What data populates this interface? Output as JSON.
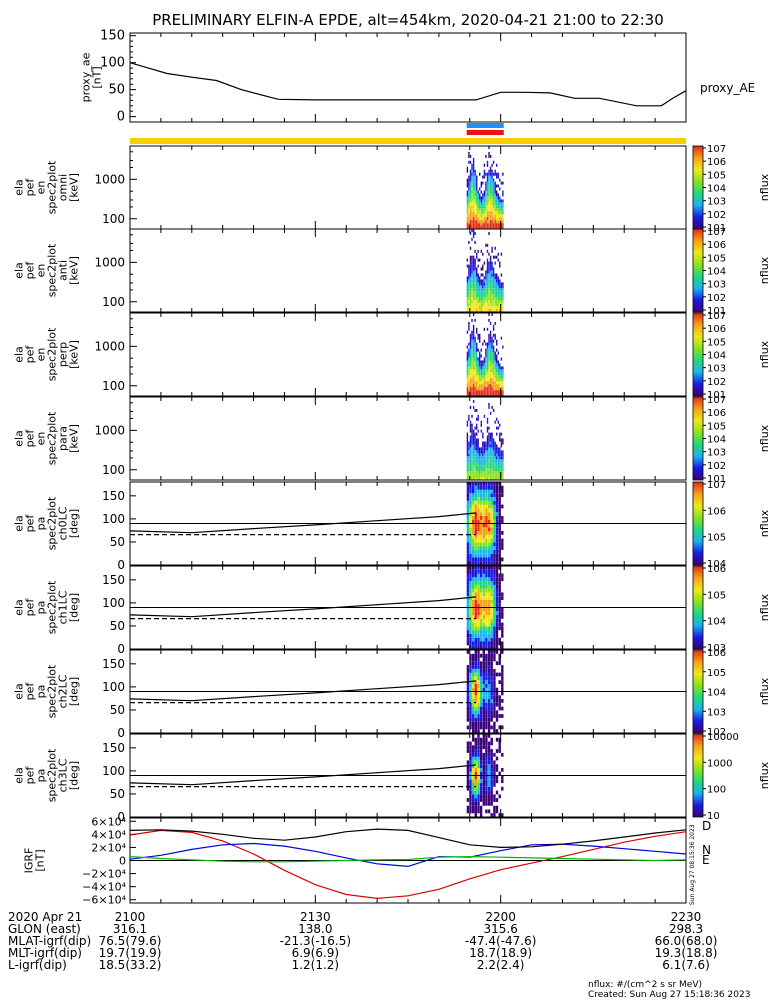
{
  "title": "PRELIMINARY ELFIN-A EPDE, alt=454km, 2020-04-21 21:00 to 22:30",
  "colors": {
    "axis": "#000000",
    "sector_bar": "#f7cf00",
    "marker_blue": "#1e90ff",
    "marker_red": "#ee1111",
    "grf_d": "#dd0000",
    "grf_n": "#0000dd",
    "grf_e": "#00bb00",
    "grf_total": "#000000",
    "colormap": [
      "#ffffff",
      "#3a007a",
      "#1a1adf",
      "#1bb2f0",
      "#1fd87a",
      "#8be21c",
      "#f0e61a",
      "#f5a01a",
      "#e12d1a"
    ]
  },
  "timeline": {
    "start_min": 0,
    "end_min": 90,
    "ticks": [
      {
        "min": 0,
        "label": "2100"
      },
      {
        "min": 30,
        "label": "2130"
      },
      {
        "min": 60,
        "label": "2200"
      },
      {
        "min": 90,
        "label": "2230"
      }
    ],
    "markers": [
      {
        "start_min": 54.5,
        "end_min": 60.5,
        "color": "marker_blue"
      },
      {
        "start_min": 54.5,
        "end_min": 60.5,
        "color": "marker_red"
      }
    ]
  },
  "panels": [
    {
      "id": "proxy_ae",
      "ylabel": [
        "proxy_ae",
        "[nT]"
      ],
      "right_label": "proxy_AE"
    },
    {
      "id": "spec_omni",
      "ylabel": [
        "ela",
        "pef",
        "en",
        "spec2plot",
        "omni",
        "[keV]"
      ],
      "cb_label": "nflux"
    },
    {
      "id": "spec_anti",
      "ylabel": [
        "ela",
        "pef",
        "en",
        "spec2plot",
        "anti",
        "[keV]"
      ],
      "cb_label": "nflux"
    },
    {
      "id": "spec_perp",
      "ylabel": [
        "ela",
        "pef",
        "en",
        "spec2plot",
        "perp",
        "[keV]"
      ],
      "cb_label": "nflux"
    },
    {
      "id": "spec_para",
      "ylabel": [
        "ela",
        "pef",
        "en",
        "spec2plot",
        "para",
        "[keV]"
      ],
      "cb_label": "nflux"
    },
    {
      "id": "pa_ch0",
      "ylabel": [
        "ela",
        "pef",
        "pa",
        "spec2plot",
        "ch0LC",
        "[deg]"
      ],
      "cb_label": "nflux"
    },
    {
      "id": "pa_ch1",
      "ylabel": [
        "ela",
        "pef",
        "pa",
        "spec2plot",
        "ch1LC",
        "[deg]"
      ],
      "cb_label": "nflux"
    },
    {
      "id": "pa_ch2",
      "ylabel": [
        "ela",
        "pef",
        "pa",
        "spec2plot",
        "ch2LC",
        "[deg]"
      ],
      "cb_label": "nflux"
    },
    {
      "id": "pa_ch3",
      "ylabel": [
        "ela",
        "pef",
        "pa",
        "spec2plot",
        "ch3LC",
        "[deg]"
      ],
      "cb_label": "nflux"
    },
    {
      "id": "igrf",
      "ylabel": [
        "IGRF",
        "[nT]"
      ],
      "right_labels": [
        "D",
        "N",
        "E"
      ]
    }
  ],
  "chart_data": [
    {
      "type": "line",
      "id": "proxy_ae",
      "ylabel": "proxy_ae [nT]",
      "ylim": [
        -10,
        155
      ],
      "yticks": [
        0,
        50,
        100,
        150
      ],
      "x_min": [
        0,
        3,
        6,
        10,
        14,
        18,
        24,
        30,
        40,
        50,
        56,
        60,
        64,
        68,
        72,
        76,
        82,
        86,
        88,
        90
      ],
      "series": [
        {
          "name": "proxy_AE",
          "values": [
            100,
            90,
            80,
            73,
            67,
            50,
            32,
            31,
            31,
            31,
            31,
            45,
            45,
            44,
            34,
            34,
            20,
            20,
            35,
            48
          ]
        }
      ]
    },
    {
      "type": "heatmap",
      "id": "spec_en",
      "panels": [
        "omni",
        "anti",
        "perp",
        "para"
      ],
      "y_scale": "log",
      "ylim_keV": [
        55,
        7000
      ],
      "yticks": [
        100,
        1000
      ],
      "data_window_min": [
        54.5,
        60.5
      ],
      "colorbar_log_range": [
        1,
        7
      ],
      "colorbar_ticks": [
        "101",
        "102",
        "103",
        "104",
        "105",
        "106",
        "107"
      ]
    },
    {
      "type": "heatmap",
      "id": "spec_pa",
      "panels": [
        "ch0LC",
        "ch1LC",
        "ch2LC",
        "ch3LC"
      ],
      "ylim_deg": [
        0,
        180
      ],
      "yticks": [
        0,
        50,
        100,
        150
      ],
      "data_window_min": [
        54.5,
        60.5
      ],
      "loss_cone_x_min": [
        0,
        10,
        20,
        30,
        40,
        50,
        56
      ],
      "loss_cone_deg": [
        74,
        70,
        79,
        87,
        96,
        105,
        113
      ],
      "colorbar_ticks": [
        [
          "104",
          "105",
          "106",
          "107"
        ],
        [
          "103",
          "104",
          "105",
          "106"
        ],
        [
          "102",
          "103",
          "104",
          "105",
          "106"
        ],
        [
          "10",
          "100",
          "1000",
          "10000"
        ]
      ]
    },
    {
      "type": "line",
      "id": "igrf",
      "ylabel": "IGRF [nT]",
      "ylim": [
        -65000,
        65000
      ],
      "ytick_values": [
        60000,
        40000,
        20000,
        0,
        -20000,
        -40000,
        -60000
      ],
      "ytick_labels": [
        "6×10⁴",
        "4×10⁴",
        "2×10⁴",
        "0",
        "−2×10⁴",
        "−4×10⁴",
        "−6×10⁴"
      ],
      "x_min": [
        0,
        5,
        10,
        15,
        20,
        25,
        30,
        35,
        40,
        45,
        50,
        55,
        60,
        65,
        70,
        75,
        80,
        85,
        90
      ],
      "series": [
        {
          "name": "D",
          "color": "grf_d",
          "values": [
            39000,
            46000,
            43000,
            30000,
            10000,
            -15000,
            -37000,
            -52000,
            -58000,
            -54000,
            -44000,
            -28000,
            -14000,
            -4000,
            6000,
            17000,
            28000,
            37000,
            44000
          ]
        },
        {
          "name": "N",
          "color": "grf_n",
          "values": [
            2000,
            8000,
            17000,
            24000,
            26000,
            22000,
            14000,
            4000,
            -5000,
            -9000,
            6000,
            5000,
            15000,
            24000,
            25000,
            22000,
            18000,
            14000,
            10000
          ]
        },
        {
          "name": "E",
          "color": "grf_e",
          "values": [
            6000,
            3000,
            1000,
            -1000,
            -2000,
            -2000,
            -1000,
            0,
            1000,
            1500,
            5000,
            6000,
            5000,
            4000,
            3000,
            2000,
            1000,
            0,
            1000
          ]
        },
        {
          "name": "total",
          "color": "grf_total",
          "values": [
            46000,
            47000,
            45000,
            40000,
            34000,
            31000,
            36000,
            44000,
            48000,
            46000,
            35000,
            24000,
            20000,
            21000,
            25000,
            30000,
            36000,
            42000,
            47000
          ]
        }
      ]
    }
  ],
  "footer": {
    "rows": [
      {
        "label": "2020 Apr 21",
        "values": [
          "2100",
          "2130",
          "2200",
          "2230"
        ]
      },
      {
        "label": "GLON (east)",
        "values": [
          "316.1",
          "138.0",
          "315.6",
          "298.3"
        ]
      },
      {
        "label": "MLAT-igrf(dip)",
        "values": [
          "76.5(79.6)",
          "-21.3(-16.5)",
          "-47.4(-47.6)",
          "66.0(68.0)"
        ]
      },
      {
        "label": "MLT-igrf(dip)",
        "values": [
          "19.7(19.9)",
          "6.9(6.9)",
          "18.7(18.9)",
          "19.3(18.8)"
        ]
      },
      {
        "label": "L-igrf(dip)",
        "values": [
          "18.5(33.2)",
          "1.2(1.2)",
          "2.2(2.4)",
          "6.1(7.6)"
        ]
      }
    ],
    "units_note": "nflux: #/(cm^2 s sr MeV)",
    "created": "Created: Sun Aug 27 15:18:36 2023",
    "side_stamp": "Sun Aug 27 08:15:36 2023"
  }
}
